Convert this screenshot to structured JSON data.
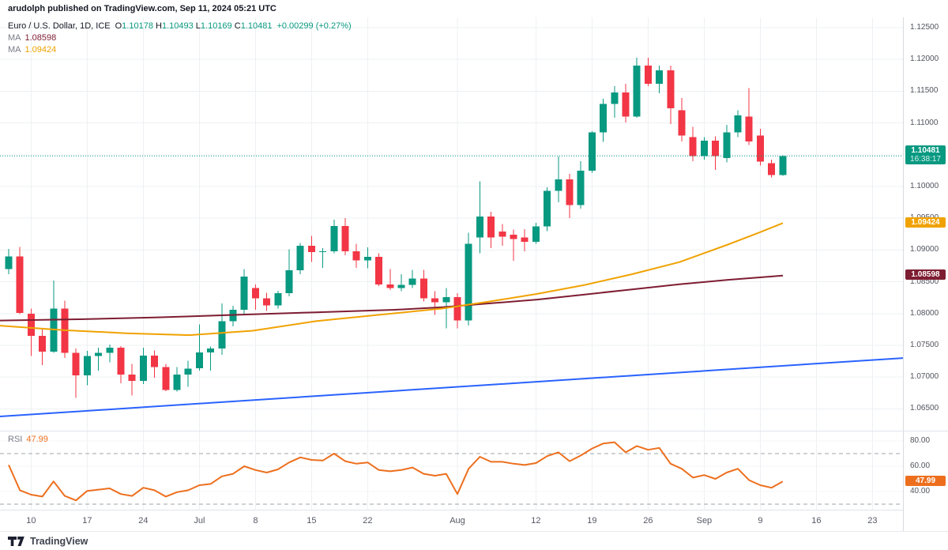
{
  "header": {
    "attribution": "arudolph published on TradingView.com, Sep 11, 2024 05:21 UTC"
  },
  "footer": {
    "logo_text": "TradingView"
  },
  "chart_data": {
    "type": "candlestick",
    "legend": {
      "title": "Euro / U.S. Dollar, 1D, ICE",
      "o_label": "O",
      "o": "1.10178",
      "h_label": "H",
      "h": "1.10493",
      "l_label": "L",
      "l": "1.10169",
      "c_label": "C",
      "c": "1.10481",
      "change": "+0.00299 (+0.27%)"
    },
    "colors": {
      "up": "#089981",
      "down": "#f23645",
      "grid": "#eef0f3",
      "current_price": "#089981",
      "trendline": "#2962ff",
      "ma_slow": "#7e1d32",
      "ma_fast": "#f0a202",
      "rsi": "#ed6f1e",
      "rsi_band": "#a0a3ab"
    },
    "y_axis": {
      "max": 1.125,
      "min": 1.065,
      "step": 0.005
    },
    "x_axis": {
      "ticks": [
        [
          "10",
          2
        ],
        [
          "17",
          7
        ],
        [
          "24",
          12
        ],
        [
          "Jul",
          17
        ],
        [
          "8",
          22
        ],
        [
          "15",
          27
        ],
        [
          "22",
          32
        ],
        [
          "Aug",
          40
        ],
        [
          "12",
          47
        ],
        [
          "19",
          52
        ],
        [
          "26",
          57
        ],
        [
          "Sep",
          62
        ],
        [
          "9",
          67
        ],
        [
          "16",
          72
        ],
        [
          "23",
          77
        ]
      ]
    },
    "current_price": {
      "value": 1.10481,
      "text": "1.10481",
      "countdown": "16:38:17"
    },
    "ma_slow": {
      "label": "MA",
      "value": "1.08598",
      "points": [
        [
          0,
          1.0789
        ],
        [
          100,
          1.0791
        ],
        [
          200,
          1.0794
        ],
        [
          300,
          1.0798
        ],
        [
          400,
          1.0802
        ],
        [
          500,
          1.0806
        ],
        [
          560,
          1.081
        ],
        [
          620,
          1.0816
        ],
        [
          680,
          1.0822
        ],
        [
          740,
          1.083
        ],
        [
          800,
          1.0838
        ],
        [
          860,
          1.0846
        ],
        [
          920,
          1.0853
        ],
        [
          991,
          1.08598
        ]
      ]
    },
    "ma_fast": {
      "label": "MA",
      "value": "1.09424",
      "points": [
        [
          0,
          1.0781
        ],
        [
          80,
          1.0774
        ],
        [
          160,
          1.0769
        ],
        [
          240,
          1.0766
        ],
        [
          320,
          1.0773
        ],
        [
          400,
          1.0788
        ],
        [
          480,
          1.0798
        ],
        [
          560,
          1.0808
        ],
        [
          620,
          1.0819
        ],
        [
          680,
          1.0831
        ],
        [
          740,
          1.0845
        ],
        [
          800,
          1.0862
        ],
        [
          860,
          1.0881
        ],
        [
          920,
          1.0908
        ],
        [
          960,
          1.0927
        ],
        [
          991,
          1.09424
        ]
      ]
    },
    "trendline": {
      "from": [
        0,
        1.0638
      ],
      "to": [
        1143,
        1.073
      ]
    },
    "candles": [
      [
        "Jun 6",
        1.087,
        1.0902,
        1.0862,
        1.089
      ],
      [
        "Jun 7",
        1.089,
        1.0905,
        1.0799,
        1.0801
      ],
      [
        "Jun 10",
        1.08,
        1.0808,
        1.0733,
        1.0765
      ],
      [
        "Jun 11",
        1.0765,
        1.0775,
        1.0719,
        1.074
      ],
      [
        "Jun 12",
        1.074,
        1.0852,
        1.0738,
        1.0808
      ],
      [
        "Jun 13",
        1.0808,
        1.082,
        1.073,
        1.0738
      ],
      [
        "Jun 14",
        1.0738,
        1.0745,
        1.0667,
        1.0703
      ],
      [
        "Jun 17",
        1.0703,
        1.0741,
        1.0687,
        1.0733
      ],
      [
        "Jun 18",
        1.0733,
        1.0746,
        1.071,
        1.0738
      ],
      [
        "Jun 19",
        1.0738,
        1.0751,
        1.0723,
        1.0746
      ],
      [
        "Jun 20",
        1.0746,
        1.0749,
        1.069,
        1.0704
      ],
      [
        "Jun 21",
        1.0704,
        1.0721,
        1.0671,
        1.0694
      ],
      [
        "Jun 24",
        1.0694,
        1.0746,
        1.0689,
        1.0734
      ],
      [
        "Jun 25",
        1.0734,
        1.0742,
        1.0699,
        1.0716
      ],
      [
        "Jun 26",
        1.0716,
        1.0721,
        1.0678,
        1.068
      ],
      [
        "Jun 27",
        1.068,
        1.0716,
        1.0677,
        1.0704
      ],
      [
        "Jun 28",
        1.0704,
        1.0726,
        1.0685,
        1.0713
      ],
      [
        "Jul 1",
        1.0714,
        1.0783,
        1.071,
        1.0739
      ],
      [
        "Jul 2",
        1.0739,
        1.0748,
        1.071,
        1.0745
      ],
      [
        "Jul 3",
        1.0745,
        1.0816,
        1.0735,
        1.0788
      ],
      [
        "Jul 4",
        1.0788,
        1.0812,
        1.078,
        1.0806
      ],
      [
        "Jul 5",
        1.0806,
        1.087,
        1.08,
        1.0858
      ],
      [
        "Jul 8",
        1.084,
        1.0846,
        1.0806,
        1.0824
      ],
      [
        "Jul 9",
        1.0824,
        1.0833,
        1.0804,
        1.0813
      ],
      [
        "Jul 10",
        1.0813,
        1.0836,
        1.0808,
        1.0832
      ],
      [
        "Jul 11",
        1.0832,
        1.0901,
        1.0827,
        1.0868
      ],
      [
        "Jul 12",
        1.0868,
        1.0911,
        1.0862,
        1.0907
      ],
      [
        "Jul 15",
        1.0907,
        1.0922,
        1.0881,
        1.0897
      ],
      [
        "Jul 16",
        1.0897,
        1.0903,
        1.0872,
        1.0898
      ],
      [
        "Jul 17",
        1.0898,
        1.0948,
        1.0895,
        1.0938
      ],
      [
        "Jul 18",
        1.0938,
        1.095,
        1.0892,
        1.0898
      ],
      [
        "Jul 19",
        1.0898,
        1.091,
        1.0872,
        1.0884
      ],
      [
        "Jul 22",
        1.0884,
        1.0904,
        1.0871,
        1.0889
      ],
      [
        "Jul 23",
        1.0889,
        1.0895,
        1.0843,
        1.0846
      ],
      [
        "Jul 24",
        1.0846,
        1.087,
        1.0837,
        1.084
      ],
      [
        "Jul 25",
        1.084,
        1.0862,
        1.0835,
        1.0845
      ],
      [
        "Jul 26",
        1.0845,
        1.0869,
        1.084,
        1.0855
      ],
      [
        "Jul 29",
        1.0855,
        1.0869,
        1.0819,
        1.0824
      ],
      [
        "Jul 30",
        1.0824,
        1.0835,
        1.0798,
        1.0818
      ],
      [
        "Jul 31",
        1.0818,
        1.084,
        1.0777,
        1.0826
      ],
      [
        "Aug 1",
        1.0826,
        1.0832,
        1.0777,
        1.0789
      ],
      [
        "Aug 2",
        1.0789,
        1.0927,
        1.0781,
        1.091
      ],
      [
        "Aug 5",
        1.092,
        1.1008,
        1.0895,
        1.0953
      ],
      [
        "Aug 6",
        1.0953,
        1.096,
        1.0903,
        1.092
      ],
      [
        "Aug 7",
        1.0929,
        1.0941,
        1.0907,
        1.0921
      ],
      [
        "Aug 8",
        1.0924,
        1.0932,
        1.0883,
        1.0917
      ],
      [
        "Aug 9",
        1.092,
        1.0933,
        1.0898,
        1.0913
      ],
      [
        "Aug 12",
        1.0913,
        1.0943,
        1.091,
        1.0937
      ],
      [
        "Aug 13",
        1.0937,
        1.0999,
        1.093,
        1.0993
      ],
      [
        "Aug 14",
        1.0993,
        1.1047,
        1.0975,
        1.1011
      ],
      [
        "Aug 15",
        1.1011,
        1.102,
        1.095,
        1.0971
      ],
      [
        "Aug 16",
        1.0971,
        1.104,
        1.0965,
        1.1025
      ],
      [
        "Aug 19",
        1.1025,
        1.1087,
        1.1022,
        1.1085
      ],
      [
        "Aug 20",
        1.1085,
        1.1138,
        1.107,
        1.113
      ],
      [
        "Aug 21",
        1.113,
        1.1158,
        1.1108,
        1.1148
      ],
      [
        "Aug 22",
        1.1148,
        1.1162,
        1.1101,
        1.111
      ],
      [
        "Aug 23",
        1.111,
        1.1203,
        1.1108,
        1.119
      ],
      [
        "Aug 26",
        1.119,
        1.1203,
        1.1158,
        1.1162
      ],
      [
        "Aug 27",
        1.1162,
        1.119,
        1.1147,
        1.1183
      ],
      [
        "Aug 28",
        1.1183,
        1.119,
        1.1098,
        1.1123
      ],
      [
        "Aug 29",
        1.112,
        1.1139,
        1.1071,
        1.108
      ],
      [
        "Aug 30",
        1.1078,
        1.1094,
        1.104,
        1.1048
      ],
      [
        "Sep 2",
        1.1048,
        1.1078,
        1.1042,
        1.1072
      ],
      [
        "Sep 3",
        1.1072,
        1.1079,
        1.1026,
        1.1048
      ],
      [
        "Sep 4",
        1.1045,
        1.1097,
        1.1038,
        1.1085
      ],
      [
        "Sep 5",
        1.1085,
        1.112,
        1.1078,
        1.1112
      ],
      [
        "Sep 6",
        1.111,
        1.1155,
        1.1065,
        1.1071
      ],
      [
        "Sep 9",
        1.108,
        1.1091,
        1.1033,
        1.1039
      ],
      [
        "Sep 10",
        1.1037,
        1.1042,
        1.1014,
        1.1018
      ],
      [
        "Sep 11",
        1.10178,
        1.10493,
        1.10169,
        1.10481
      ]
    ],
    "rsi": {
      "label": "RSI",
      "value": "47.99",
      "overbought": 70,
      "oversold": 30,
      "axis_labels": [
        80,
        60,
        40
      ],
      "values": [
        61,
        41,
        37.5,
        36,
        48,
        36.5,
        33,
        40.5,
        41.5,
        42.5,
        38,
        36.5,
        43,
        41,
        36,
        39.5,
        41,
        45,
        46,
        52,
        54,
        60,
        57,
        55,
        57.5,
        63,
        67,
        65,
        64.5,
        70,
        64,
        62,
        63,
        57,
        56,
        57,
        59,
        54,
        52.5,
        54,
        38,
        58,
        67.5,
        63.5,
        63.5,
        62,
        61,
        62.5,
        68,
        71,
        64,
        68.5,
        74,
        78,
        79,
        71,
        76,
        73,
        74.5,
        62,
        58,
        51,
        53,
        50,
        55,
        58,
        49,
        45,
        43,
        47.99
      ]
    }
  }
}
